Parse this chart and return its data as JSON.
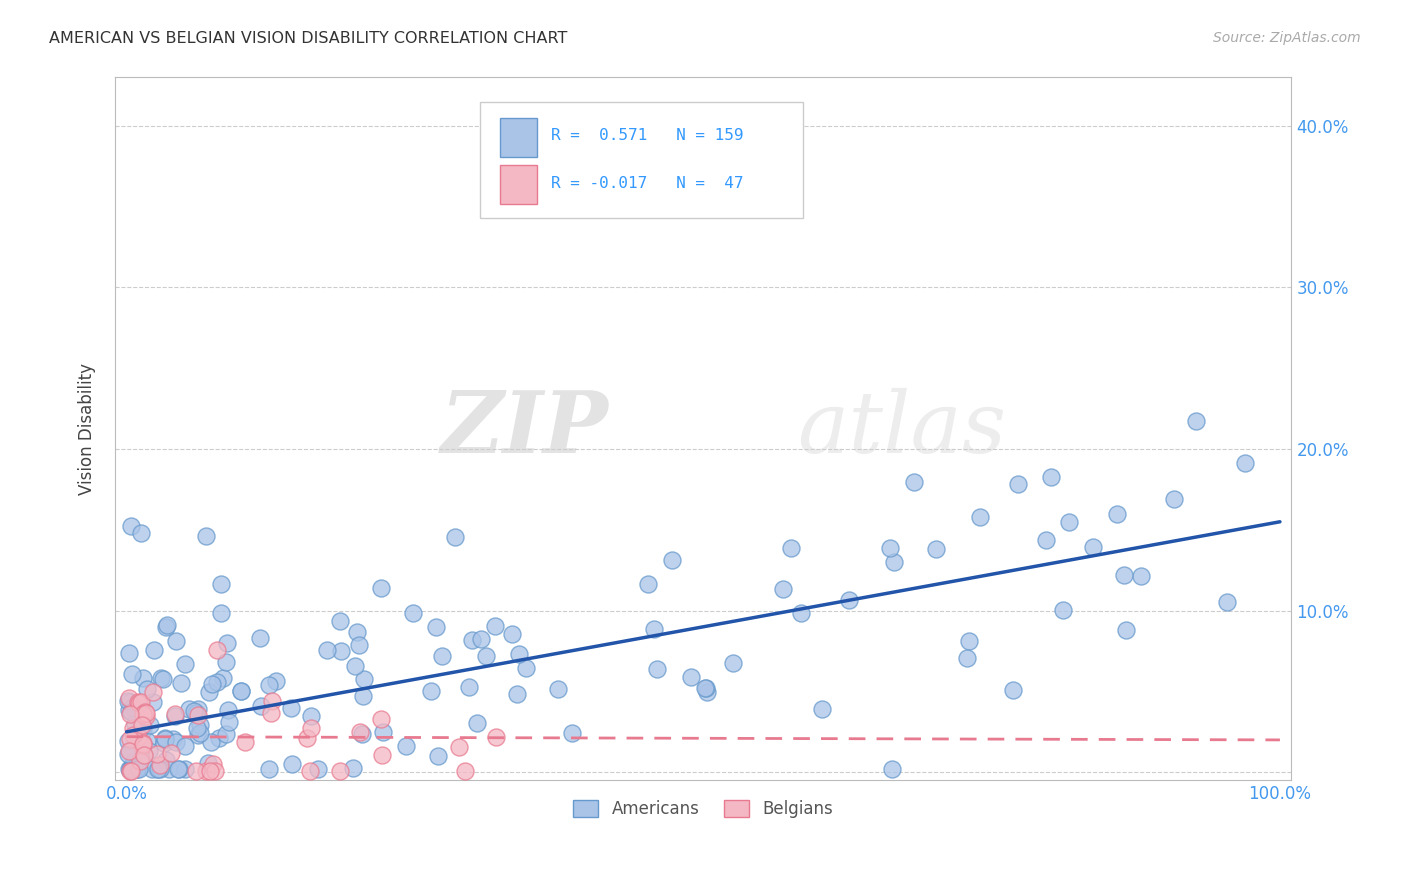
{
  "title": "AMERICAN VS BELGIAN VISION DISABILITY CORRELATION CHART",
  "source": "Source: ZipAtlas.com",
  "ylabel": "Vision Disability",
  "xlim": [
    -0.01,
    1.01
  ],
  "ylim": [
    -0.005,
    0.43
  ],
  "yticks": [
    0.0,
    0.1,
    0.2,
    0.3,
    0.4
  ],
  "ytick_labels": [
    "",
    "10.0%",
    "20.0%",
    "30.0%",
    "40.0%"
  ],
  "xticks": [
    0.0,
    0.1,
    0.2,
    0.3,
    0.4,
    0.5,
    0.6,
    0.7,
    0.8,
    0.9,
    1.0
  ],
  "xtick_labels": [
    "0.0%",
    "",
    "",
    "",
    "",
    "",
    "",
    "",
    "",
    "",
    "100.0%"
  ],
  "grid_color": "#cccccc",
  "background_color": "#ffffff",
  "american_color": "#aac4e8",
  "american_edge_color": "#6699cc",
  "belgian_color": "#f4b8c4",
  "belgian_edge_color": "#e87a90",
  "american_R": 0.571,
  "american_N": 159,
  "belgian_R": -0.017,
  "belgian_N": 47,
  "trend_american_color": "#2255aa",
  "trend_belgian_color": "#e87a90",
  "watermark_zip": "ZIP",
  "watermark_atlas": "atlas",
  "legend_label_american": "Americans",
  "legend_label_belgian": "Belgians",
  "trend_am_x0": 0.0,
  "trend_am_y0": 0.025,
  "trend_am_x1": 1.0,
  "trend_am_y1": 0.155,
  "trend_be_x0": 0.0,
  "trend_be_y0": 0.022,
  "trend_be_x1": 1.0,
  "trend_be_y1": 0.02
}
